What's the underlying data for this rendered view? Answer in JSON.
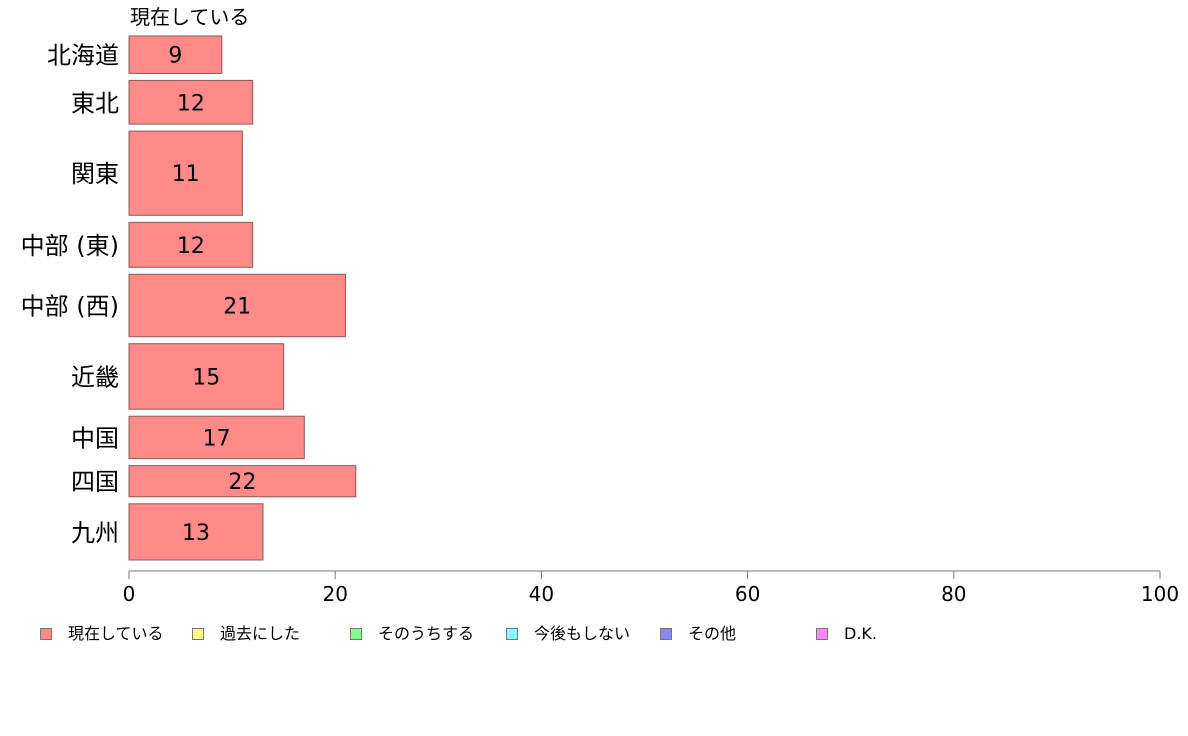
{
  "chart_data": {
    "type": "bar",
    "orientation": "horizontal",
    "header_label": "現在している",
    "categories": [
      "北海道",
      "東北",
      "関東",
      "中部 (東)",
      "中部 (西)",
      "近畿",
      "中国",
      "四国",
      "九州"
    ],
    "series": [
      {
        "name": "現在している",
        "color": "#ff8a8a",
        "values": [
          9,
          12,
          11,
          12,
          21,
          15,
          17,
          22,
          13
        ],
        "labels": [
          "9",
          "12",
          "11",
          "12",
          "21",
          "15",
          "17",
          "22",
          "13"
        ]
      }
    ],
    "bar_relative_widths": [
      0.6,
      0.7,
      1.35,
      0.72,
      1.0,
      1.05,
      0.68,
      0.5,
      0.9
    ],
    "xlim": [
      0,
      100
    ],
    "xticks": [
      "0",
      "20",
      "40",
      "60",
      "80",
      "100"
    ],
    "legend_position": "bottom",
    "legend": [
      {
        "label": "現在している",
        "color": "#ff8a8a"
      },
      {
        "label": "過去にした",
        "color": "#ffff88"
      },
      {
        "label": "そのうちする",
        "color": "#88ff88"
      },
      {
        "label": "今後もしない",
        "color": "#88ffff"
      },
      {
        "label": "その他",
        "color": "#8888ff"
      },
      {
        "label": "D.K.",
        "color": "#ff88ff"
      }
    ]
  }
}
